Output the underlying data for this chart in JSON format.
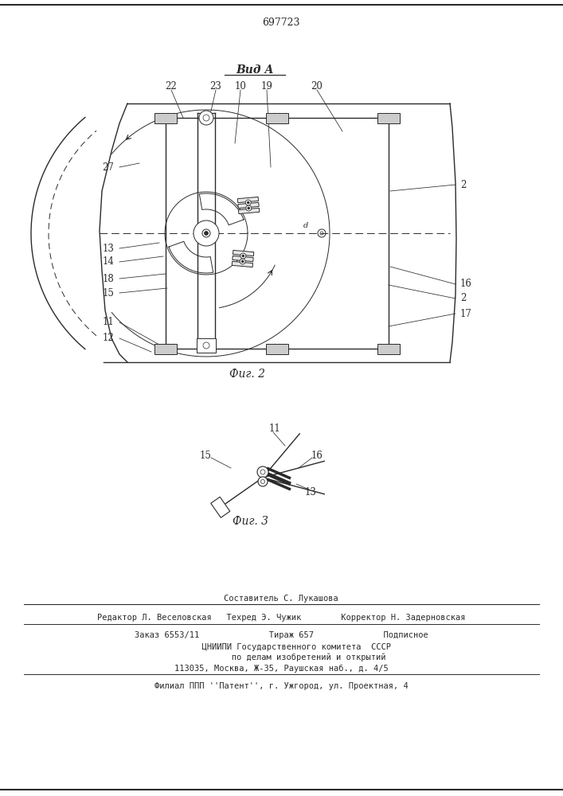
{
  "patent_number": "697723",
  "view_label": "Вид А",
  "fig2_label": "Фиг. 2",
  "fig3_label": "Фиг. 3",
  "bg_color": "#ffffff",
  "line_color": "#2a2a2a",
  "footer_lines": [
    "Составитель С. Лукашова",
    "Редактор Л. Веселовская   Техред Э. Чужик        Корректор Н. Задерновская",
    "Заказ 6553/11              Тираж 657              Подписное",
    "      ЦНИИПИ Государственного комитета  СССР",
    "           по делам изобретений и открытий",
    "113035, Москва, Ж-35, Раушская наб., д. 4/5",
    "Филиал ППП ''Патент'', г. Ужгород, ул. Проектная, 4"
  ]
}
